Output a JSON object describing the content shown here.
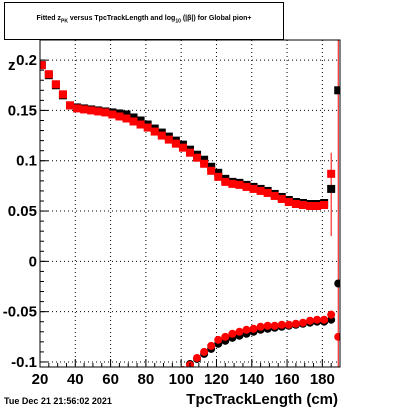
{
  "title": {
    "prefix": "Fitted  z",
    "sub1": "PK",
    "mid": "versus TpcTrackLength and log",
    "sub2": "10",
    "suffix": "(|β|) for Global pion+"
  },
  "timestamp": "Tue Dec 21 21:56:02 2021",
  "chart_data": {
    "type": "scatter",
    "title": "Fitted  zPK versus TpcTrackLength and log10(|β|) for Global pion+",
    "xlabel": "TpcTrackLength (cm)",
    "ylabel": "z",
    "xlim": [
      20,
      190
    ],
    "ylim": [
      -0.105,
      0.22
    ],
    "xticks": [
      20,
      40,
      60,
      80,
      100,
      120,
      140,
      160,
      180
    ],
    "yticks": [
      -0.1,
      -0.05,
      0,
      0.05,
      0.1,
      0.15,
      0.2
    ],
    "ytick_labels": [
      "-0.1",
      "-0.05",
      "0",
      "0.05",
      "0.1",
      "0.15",
      "0.2"
    ],
    "grid": true,
    "colors": {
      "black_series": "#000000",
      "red_series": "#ff0000"
    },
    "series": [
      {
        "marker": "square",
        "color": "#000000",
        "points": [
          [
            21,
            0.195
          ],
          [
            25,
            0.185
          ],
          [
            29,
            0.175
          ],
          [
            33,
            0.165
          ],
          [
            37,
            0.155
          ],
          [
            41,
            0.153
          ],
          [
            45,
            0.152
          ],
          [
            49,
            0.151
          ],
          [
            53,
            0.15
          ],
          [
            57,
            0.149
          ],
          [
            61,
            0.148
          ],
          [
            65,
            0.147
          ],
          [
            69,
            0.146
          ],
          [
            73,
            0.143
          ],
          [
            77,
            0.14
          ],
          [
            81,
            0.136
          ],
          [
            85,
            0.132
          ],
          [
            89,
            0.128
          ],
          [
            93,
            0.124
          ],
          [
            97,
            0.12
          ],
          [
            101,
            0.116
          ],
          [
            105,
            0.111
          ],
          [
            109,
            0.106
          ],
          [
            113,
            0.101
          ],
          [
            117,
            0.094
          ],
          [
            121,
            0.088
          ],
          [
            125,
            0.082
          ],
          [
            129,
            0.079
          ],
          [
            133,
            0.078
          ],
          [
            137,
            0.076
          ],
          [
            141,
            0.074
          ],
          [
            145,
            0.072
          ],
          [
            149,
            0.07
          ],
          [
            153,
            0.067
          ],
          [
            157,
            0.064
          ],
          [
            161,
            0.061
          ],
          [
            165,
            0.059
          ],
          [
            169,
            0.058
          ],
          [
            173,
            0.057
          ],
          [
            177,
            0.057
          ],
          [
            181,
            0.058
          ],
          [
            185,
            0.072
          ],
          [
            189,
            0.17
          ]
        ]
      },
      {
        "marker": "square",
        "color": "#ff0000",
        "points": [
          [
            21,
            0.195
          ],
          [
            25,
            0.186
          ],
          [
            29,
            0.176
          ],
          [
            33,
            0.166
          ],
          [
            37,
            0.155
          ],
          [
            41,
            0.152
          ],
          [
            45,
            0.151
          ],
          [
            49,
            0.15
          ],
          [
            53,
            0.149
          ],
          [
            57,
            0.148
          ],
          [
            61,
            0.146
          ],
          [
            65,
            0.144
          ],
          [
            69,
            0.142
          ],
          [
            73,
            0.139
          ],
          [
            77,
            0.136
          ],
          [
            81,
            0.133
          ],
          [
            85,
            0.129
          ],
          [
            89,
            0.125
          ],
          [
            93,
            0.121
          ],
          [
            97,
            0.117
          ],
          [
            101,
            0.113
          ],
          [
            105,
            0.108
          ],
          [
            109,
            0.103
          ],
          [
            113,
            0.097
          ],
          [
            117,
            0.09
          ],
          [
            121,
            0.084
          ],
          [
            125,
            0.079
          ],
          [
            129,
            0.077
          ],
          [
            133,
            0.076
          ],
          [
            137,
            0.074
          ],
          [
            141,
            0.072
          ],
          [
            145,
            0.07
          ],
          [
            149,
            0.068
          ],
          [
            153,
            0.065
          ],
          [
            157,
            0.062
          ],
          [
            161,
            0.059
          ],
          [
            165,
            0.057
          ],
          [
            169,
            0.056
          ],
          [
            173,
            0.055
          ],
          [
            177,
            0.055
          ],
          [
            181,
            0.056
          ],
          [
            185,
            0.087
          ]
        ]
      },
      {
        "marker": "circle",
        "color": "#000000",
        "points": [
          [
            105,
            -0.102
          ],
          [
            109,
            -0.097
          ],
          [
            113,
            -0.092
          ],
          [
            117,
            -0.087
          ],
          [
            121,
            -0.082
          ],
          [
            125,
            -0.079
          ],
          [
            129,
            -0.076
          ],
          [
            133,
            -0.074
          ],
          [
            137,
            -0.072
          ],
          [
            141,
            -0.07
          ],
          [
            145,
            -0.068
          ],
          [
            149,
            -0.067
          ],
          [
            153,
            -0.066
          ],
          [
            157,
            -0.065
          ],
          [
            161,
            -0.064
          ],
          [
            165,
            -0.063
          ],
          [
            169,
            -0.062
          ],
          [
            173,
            -0.061
          ],
          [
            177,
            -0.06
          ],
          [
            181,
            -0.06
          ],
          [
            185,
            -0.058
          ],
          [
            189,
            -0.022
          ]
        ]
      },
      {
        "marker": "circle",
        "color": "#ff0000",
        "points": [
          [
            101,
            -0.108
          ],
          [
            105,
            -0.103
          ],
          [
            109,
            -0.096
          ],
          [
            113,
            -0.09
          ],
          [
            117,
            -0.084
          ],
          [
            121,
            -0.078
          ],
          [
            125,
            -0.075
          ],
          [
            129,
            -0.072
          ],
          [
            133,
            -0.07
          ],
          [
            137,
            -0.068
          ],
          [
            141,
            -0.067
          ],
          [
            145,
            -0.065
          ],
          [
            149,
            -0.064
          ],
          [
            153,
            -0.064
          ],
          [
            157,
            -0.063
          ],
          [
            161,
            -0.063
          ],
          [
            165,
            -0.062
          ],
          [
            169,
            -0.061
          ],
          [
            173,
            -0.059
          ],
          [
            177,
            -0.058
          ],
          [
            181,
            -0.058
          ],
          [
            185,
            -0.053
          ],
          [
            189,
            -0.075
          ]
        ]
      }
    ],
    "error_bars": [
      {
        "x": 185,
        "y_low": 0.025,
        "y_high": 0.108,
        "color": "#ff0000"
      },
      {
        "x": 189,
        "y_low": -0.105,
        "y_high": 0.22,
        "color": "#ff0000"
      }
    ]
  }
}
